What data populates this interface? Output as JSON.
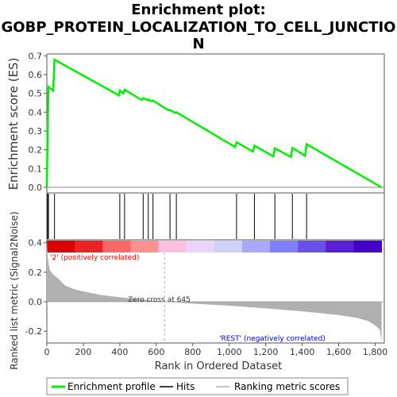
{
  "title_lines": [
    "Enrichment plot:",
    "GOBP_PROTEIN_LOCALIZATION_TO_CELL_JUNCTIO",
    "N"
  ],
  "colors": {
    "es_line": "#00ee00",
    "hit": "#000000",
    "metric_fill": "#b0b0b0",
    "pos_label": "#ff0000",
    "neg_label": "#0000cc",
    "zero_line": "#aaaaaa"
  },
  "chart_data": [
    {
      "type": "line",
      "panel": "enrichment",
      "ylabel": "Enrichment score (ES)",
      "ylim": [
        -0.03,
        0.71
      ],
      "yticks": [
        0.0,
        0.1,
        0.2,
        0.3,
        0.4,
        0.5,
        0.6,
        0.7
      ],
      "ytick_labels": [
        "0.0",
        "0.1",
        "0.2",
        "0.3",
        "0.4",
        "0.5",
        "0.6",
        "0.7"
      ],
      "series": [
        {
          "x": [
            0,
            4,
            9,
            35,
            42,
            395,
            400,
            418,
            426,
            520,
            528,
            550,
            556,
            575,
            582,
            667,
            675,
            700,
            710,
            1032,
            1040,
            1130,
            1138,
            1242,
            1250,
            1338,
            1346,
            1416,
            1424,
            1835
          ],
          "values": [
            0.0,
            0.29,
            0.535,
            0.515,
            0.68,
            0.49,
            0.515,
            0.5,
            0.52,
            0.465,
            0.475,
            0.465,
            0.468,
            0.458,
            0.462,
            0.41,
            0.412,
            0.398,
            0.4,
            0.215,
            0.24,
            0.19,
            0.222,
            0.165,
            0.208,
            0.162,
            0.21,
            0.168,
            0.23,
            0.0
          ]
        }
      ]
    },
    {
      "type": "line",
      "panel": "hits",
      "hit_positions": [
        4,
        9,
        42,
        400,
        426,
        528,
        556,
        582,
        675,
        710,
        1040,
        1138,
        1250,
        1346,
        1424
      ],
      "color_band": [
        "#dd0000",
        "#ee2222",
        "#ff6666",
        "#ff9090",
        "#ffc0e0",
        "#e8d4ff",
        "#d0d0ff",
        "#a8a8ff",
        "#8080ff",
        "#6a50e8",
        "#5a20d8",
        "#4400c8"
      ]
    },
    {
      "type": "area",
      "panel": "metric",
      "xlabel": "Rank in Ordered Dataset",
      "ylabel": "Ranked list metric (Signal2Noise)",
      "ylim": [
        -0.28,
        0.42
      ],
      "yticks": [
        -0.2,
        0.0,
        0.2,
        0.4
      ],
      "ytick_labels": [
        "-0.2",
        "0.0",
        "0.2",
        "0.4"
      ],
      "xlim": [
        0,
        1850
      ],
      "xticks": [
        0,
        200,
        400,
        600,
        800,
        1000,
        1200,
        1400,
        1600,
        1800
      ],
      "xtick_labels": [
        "0",
        "200",
        "400",
        "600",
        "800",
        "1,000",
        "1,200",
        "1,400",
        "1,600",
        "1,800"
      ],
      "x": [
        0,
        5,
        15,
        30,
        60,
        100,
        150,
        200,
        300,
        400,
        500,
        645,
        800,
        1000,
        1200,
        1400,
        1600,
        1700,
        1760,
        1800,
        1825,
        1835
      ],
      "values": [
        0.42,
        0.3,
        0.22,
        0.19,
        0.16,
        0.11,
        0.085,
        0.07,
        0.045,
        0.03,
        0.018,
        0.0,
        -0.013,
        -0.027,
        -0.045,
        -0.065,
        -0.09,
        -0.11,
        -0.13,
        -0.16,
        -0.19,
        -0.27
      ]
    }
  ],
  "annotations": {
    "pos_label": "'2' (positively correlated)",
    "neg_label": "'REST' (negatively correlated)",
    "zero_cross_label": "Zero cross at 645",
    "zero_cross_rank": 645
  },
  "legend": {
    "items": [
      "Enrichment profile",
      "Hits",
      "Ranking metric scores"
    ]
  }
}
